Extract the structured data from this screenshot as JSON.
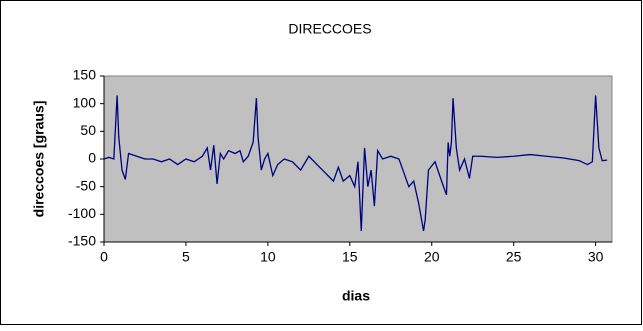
{
  "chart_data": {
    "type": "line",
    "title": "DIRECCOES",
    "x_label": "dias",
    "y_label": "direccoes [graus]",
    "xlim": [
      0,
      31
    ],
    "xticks": [
      0,
      5,
      10,
      15,
      20,
      25,
      30
    ],
    "ylim": [
      -150,
      150
    ],
    "yticks": [
      -150,
      -100,
      -50,
      0,
      50,
      100,
      150
    ],
    "x": [
      0,
      0.3,
      0.6,
      0.8,
      0.9,
      1.1,
      1.3,
      1.5,
      2,
      2.5,
      3,
      3.5,
      4,
      4.5,
      5,
      5.5,
      6,
      6.3,
      6.5,
      6.7,
      6.9,
      7.1,
      7.3,
      7.6,
      8,
      8.3,
      8.5,
      8.8,
      9.1,
      9.3,
      9.4,
      9.6,
      9.8,
      10,
      10.3,
      10.6,
      11,
      11.5,
      12,
      12.5,
      13,
      13.5,
      14,
      14.3,
      14.6,
      15,
      15.3,
      15.5,
      15.7,
      15.9,
      16.1,
      16.3,
      16.5,
      16.7,
      17,
      17.5,
      18,
      18.3,
      18.6,
      18.9,
      19.2,
      19.5,
      19.6,
      19.8,
      20.2,
      20.6,
      20.9,
      21,
      21.1,
      21.2,
      21.3,
      21.5,
      21.7,
      22,
      22.3,
      22.5,
      23,
      24,
      25,
      26,
      27,
      28,
      29,
      29.5,
      29.8,
      30,
      30.2,
      30.4,
      30.7
    ],
    "series": [
      {
        "name": "direccoes",
        "color": "#000080",
        "values": [
          0,
          3,
          0,
          115,
          40,
          -20,
          -37,
          10,
          5,
          0,
          0,
          -5,
          0,
          -10,
          0,
          -5,
          5,
          20,
          -20,
          25,
          -45,
          10,
          0,
          15,
          10,
          15,
          -5,
          5,
          30,
          110,
          40,
          -20,
          0,
          10,
          -30,
          -10,
          0,
          -5,
          -20,
          5,
          -10,
          -25,
          -40,
          -15,
          -40,
          -30,
          -50,
          -5,
          -130,
          20,
          -50,
          -20,
          -85,
          15,
          0,
          5,
          0,
          -25,
          -50,
          -40,
          -80,
          -130,
          -110,
          -20,
          -5,
          -40,
          -65,
          30,
          5,
          30,
          110,
          20,
          -20,
          0,
          -35,
          5,
          5,
          3,
          5,
          8,
          5,
          2,
          -3,
          -10,
          -5,
          115,
          20,
          -3,
          -2
        ]
      }
    ],
    "plot_background": "#c0c0c0"
  }
}
